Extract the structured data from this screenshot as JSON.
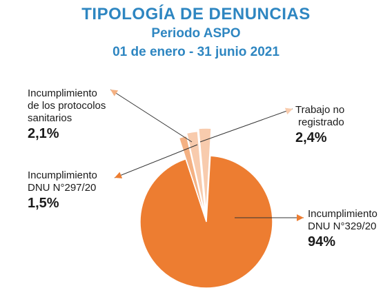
{
  "title": "TIPOLOGÍA DE DENUNCIAS",
  "subtitle": "Periodo ASPO",
  "period": "01 de enero - 31 junio 2021",
  "colors": {
    "main": "#ed7d31",
    "light1": "#f4b183",
    "light2": "#f8cbad",
    "accent_title": "#2e86c1"
  },
  "chart_data": {
    "type": "pie",
    "title": "TIPOLOGÍA DE DENUNCIAS",
    "slices": [
      {
        "label_lines": [
          "Incumplimiento",
          "DNU N°329/20"
        ],
        "value": 94,
        "value_label": "94%"
      },
      {
        "label_lines": [
          "Incumplimiento",
          "DNU N°297/20"
        ],
        "value": 1.5,
        "value_label": "1,5%"
      },
      {
        "label_lines": [
          "Incumplimiento",
          "de los protocolos",
          "sanitarios"
        ],
        "value": 2.1,
        "value_label": "2,1%"
      },
      {
        "label_lines": [
          "Trabajo no",
          "registrado"
        ],
        "value": 2.4,
        "value_label": "2,4%"
      }
    ]
  }
}
